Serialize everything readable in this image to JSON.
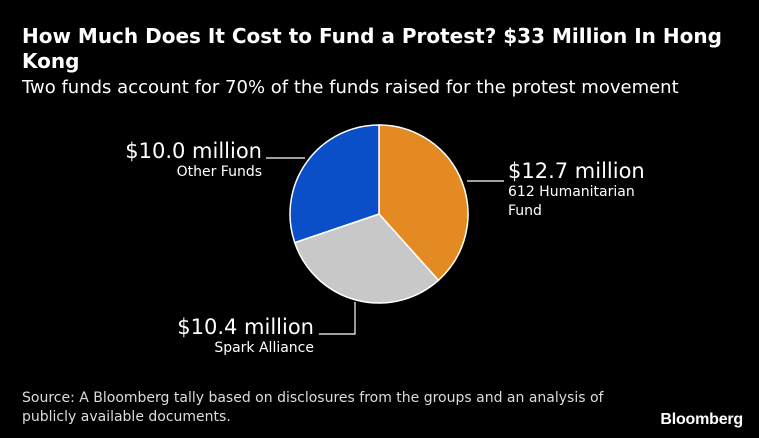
{
  "header": {
    "title": "How Much Does It Cost to Fund a Protest? $33 Million In Hong Kong",
    "subtitle": "Two funds account for 70% of the funds raised for the protest movement"
  },
  "chart_data": {
    "type": "pie",
    "unit": "USD millions",
    "slices": [
      {
        "name": "612 Humanitarian Fund",
        "value": 12.7,
        "label": "$12.7 million",
        "color": "#e38a22"
      },
      {
        "name": "Spark Alliance",
        "value": 10.4,
        "label": "$10.4 million",
        "color": "#c8c8c8"
      },
      {
        "name": "Other Funds",
        "value": 10.0,
        "label": "$10.0 million",
        "color": "#0a4fc8"
      }
    ]
  },
  "footer": {
    "source": "Source: A Bloomberg tally based on disclosures from the groups and an analysis of publicly available documents.",
    "logo": "Bloomberg"
  }
}
